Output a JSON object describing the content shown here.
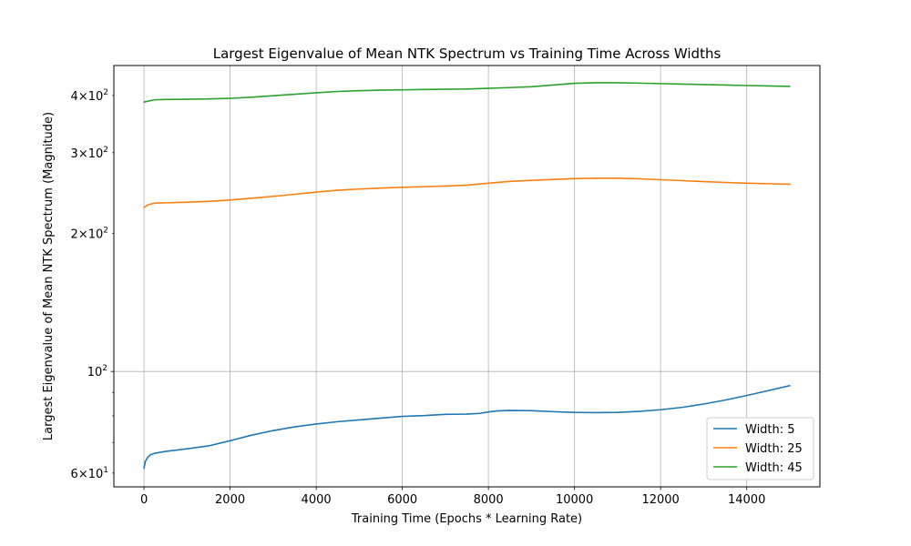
{
  "chart_data": {
    "type": "line",
    "title": "Largest Eigenvalue of Mean NTK Spectrum vs Training Time Across Widths",
    "xlabel": "Training Time (Epochs * Learning Rate)",
    "ylabel": "Largest Eigenvalue of Mean NTK Spectrum (Magnitude)",
    "xlim": [
      -700,
      15700
    ],
    "ylim": [
      56,
      465
    ],
    "yscale": "log",
    "grid": true,
    "legend_position": "lower right",
    "xticks": [
      0,
      2000,
      4000,
      6000,
      8000,
      10000,
      12000,
      14000
    ],
    "xtick_labels": [
      "0",
      "2000",
      "4000",
      "6000",
      "8000",
      "10000",
      "12000",
      "14000"
    ],
    "yticks_major": [
      100
    ],
    "yticks_major_labels": [
      {
        "base": "10",
        "exp": "2"
      }
    ],
    "yticks_minor": [
      60,
      200,
      300,
      400
    ],
    "yticks_minor_labels": [
      {
        "mant": "6",
        "base": "10",
        "exp": "1"
      },
      {
        "mant": "2",
        "base": "10",
        "exp": "2"
      },
      {
        "mant": "3",
        "base": "10",
        "exp": "2"
      },
      {
        "mant": "4",
        "base": "10",
        "exp": "2"
      }
    ],
    "yticks_minor_unlabeled": [
      70,
      80,
      90
    ],
    "series": [
      {
        "name": "Width: 5",
        "color": "#1f77b4",
        "x": [
          0,
          30,
          80,
          150,
          250,
          500,
          1000,
          1500,
          2000,
          2500,
          3000,
          3500,
          4000,
          4500,
          5000,
          5500,
          6000,
          6500,
          7000,
          7500,
          7800,
          8000,
          8200,
          8500,
          9000,
          9500,
          10000,
          10500,
          11000,
          11500,
          12000,
          12500,
          13000,
          13500,
          14000,
          14500,
          15000
        ],
        "values": [
          61.5,
          63.6,
          64.8,
          65.8,
          66.3,
          66.9,
          67.8,
          68.8,
          70.6,
          72.6,
          74.3,
          75.7,
          76.8,
          77.7,
          78.4,
          79.1,
          79.8,
          80.1,
          80.6,
          80.7,
          81.0,
          81.6,
          82.0,
          82.2,
          82.1,
          81.7,
          81.4,
          81.3,
          81.4,
          81.8,
          82.5,
          83.5,
          84.9,
          86.6,
          88.6,
          90.8,
          93.1
        ]
      },
      {
        "name": "Width: 25",
        "color": "#ff7f0e",
        "x": [
          0,
          100,
          250,
          500,
          1000,
          1500,
          2000,
          2500,
          3000,
          3500,
          4000,
          4500,
          5000,
          5500,
          6000,
          6500,
          7000,
          7500,
          8000,
          8500,
          9000,
          9500,
          10000,
          10500,
          11000,
          11500,
          12000,
          12500,
          13000,
          13500,
          14000,
          14500,
          15000
        ],
        "values": [
          228,
          231,
          233,
          233.3,
          234,
          235,
          236.6,
          238.8,
          241,
          243.5,
          246.2,
          248.5,
          250,
          251.2,
          252.2,
          253,
          253.8,
          255,
          257.5,
          259.8,
          261.2,
          262.4,
          263.4,
          264,
          264,
          263.2,
          262,
          260.8,
          259.5,
          258.4,
          257.5,
          256.8,
          256.2
        ]
      },
      {
        "name": "Width: 45",
        "color": "#2ca02c",
        "x": [
          0,
          100,
          250,
          500,
          1000,
          1500,
          2000,
          2500,
          3000,
          3500,
          4000,
          4500,
          5000,
          5500,
          6000,
          6500,
          7000,
          7500,
          8000,
          8500,
          9000,
          9500,
          10000,
          10500,
          11000,
          11500,
          12000,
          12500,
          13000,
          13500,
          14000,
          14500,
          15000
        ],
        "values": [
          387,
          389,
          391.5,
          392,
          392.5,
          393.2,
          394.3,
          396.5,
          399.5,
          402.5,
          405.5,
          408.2,
          409.8,
          410.8,
          411.5,
          412.2,
          412.8,
          413.2,
          414.6,
          416.2,
          418,
          421.5,
          425.2,
          426.5,
          426.5,
          425.6,
          424.6,
          423.6,
          422.6,
          421.5,
          420.5,
          419.6,
          418.8
        ]
      }
    ]
  }
}
